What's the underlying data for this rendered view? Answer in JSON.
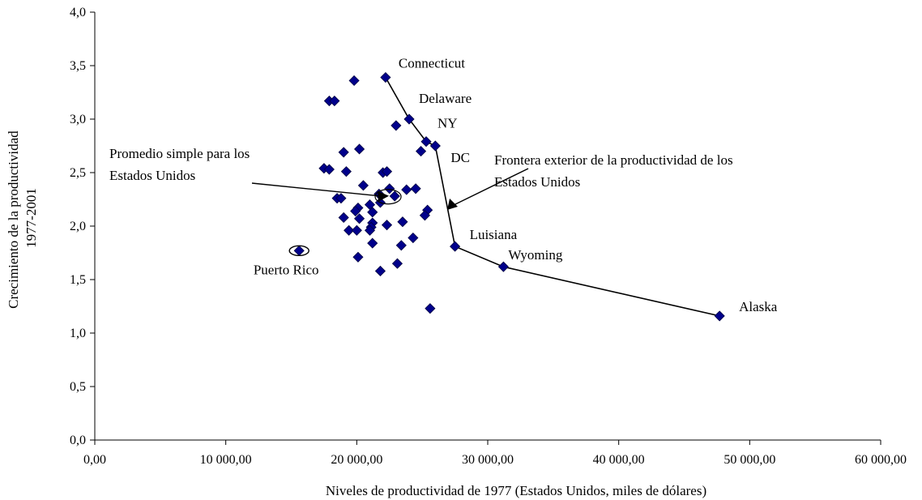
{
  "chart_data": {
    "type": "scatter",
    "title": "",
    "xlabel": "Niveles de productividad de 1977  (Estados Unidos, miles de dólares)",
    "ylabel_lines": [
      "Crecimiento de la productividad",
      "1977-2001"
    ],
    "xlim": [
      0,
      60000
    ],
    "ylim": [
      0,
      4.0
    ],
    "x_ticks": [
      0,
      10000,
      20000,
      30000,
      40000,
      50000,
      60000
    ],
    "x_tick_labels": [
      "0,00",
      "10 000,00",
      "20 000,00",
      "30 000,00",
      "40 000,00",
      "50 000,00",
      "60 000,00"
    ],
    "y_ticks": [
      0,
      0.5,
      1.0,
      1.5,
      2.0,
      2.5,
      3.0,
      3.5,
      4.0
    ],
    "y_tick_labels": [
      "0,0",
      "0,5",
      "1,0",
      "1,5",
      "2,0",
      "2,5",
      "3,0",
      "3,5",
      "4,0"
    ],
    "grid": false,
    "marker_color": "#00008B",
    "series": [
      {
        "name": "",
        "points": [
          {
            "x": 22200,
            "y": 3.39,
            "label": "Connecticut"
          },
          {
            "x": 24000,
            "y": 3.0,
            "label": "Delaware"
          },
          {
            "x": 25300,
            "y": 2.79,
            "label": "NY"
          },
          {
            "x": 26000,
            "y": 2.75,
            "label": "DC"
          },
          {
            "x": 27500,
            "y": 1.81,
            "label": "Luisiana"
          },
          {
            "x": 31200,
            "y": 1.62,
            "label": "Wyoming"
          },
          {
            "x": 47700,
            "y": 1.16,
            "label": "Alaska"
          },
          {
            "x": 15600,
            "y": 1.77,
            "label": "Puerto Rico"
          },
          {
            "x": 19800,
            "y": 3.36
          },
          {
            "x": 17900,
            "y": 3.17
          },
          {
            "x": 18300,
            "y": 3.17
          },
          {
            "x": 23000,
            "y": 2.94
          },
          {
            "x": 24900,
            "y": 2.7
          },
          {
            "x": 19000,
            "y": 2.69
          },
          {
            "x": 20200,
            "y": 2.72
          },
          {
            "x": 17500,
            "y": 2.54
          },
          {
            "x": 17900,
            "y": 2.53
          },
          {
            "x": 19200,
            "y": 2.51
          },
          {
            "x": 22000,
            "y": 2.5
          },
          {
            "x": 22300,
            "y": 2.51
          },
          {
            "x": 20500,
            "y": 2.38
          },
          {
            "x": 22500,
            "y": 2.35
          },
          {
            "x": 23800,
            "y": 2.34
          },
          {
            "x": 24500,
            "y": 2.35
          },
          {
            "x": 21700,
            "y": 2.3
          },
          {
            "x": 22900,
            "y": 2.28
          },
          {
            "x": 18500,
            "y": 2.26
          },
          {
            "x": 18800,
            "y": 2.26
          },
          {
            "x": 21000,
            "y": 2.2
          },
          {
            "x": 21800,
            "y": 2.22
          },
          {
            "x": 20100,
            "y": 2.17
          },
          {
            "x": 19900,
            "y": 2.14
          },
          {
            "x": 21200,
            "y": 2.13
          },
          {
            "x": 25400,
            "y": 2.15
          },
          {
            "x": 25200,
            "y": 2.1
          },
          {
            "x": 19000,
            "y": 2.08
          },
          {
            "x": 20200,
            "y": 2.07
          },
          {
            "x": 21200,
            "y": 2.03
          },
          {
            "x": 23500,
            "y": 2.04
          },
          {
            "x": 22300,
            "y": 2.01
          },
          {
            "x": 21100,
            "y": 1.99
          },
          {
            "x": 19400,
            "y": 1.96
          },
          {
            "x": 20000,
            "y": 1.96
          },
          {
            "x": 21000,
            "y": 1.96
          },
          {
            "x": 24300,
            "y": 1.89
          },
          {
            "x": 21200,
            "y": 1.84
          },
          {
            "x": 23400,
            "y": 1.82
          },
          {
            "x": 20100,
            "y": 1.71
          },
          {
            "x": 23100,
            "y": 1.65
          },
          {
            "x": 21800,
            "y": 1.58
          },
          {
            "x": 25600,
            "y": 1.23
          }
        ]
      }
    ],
    "frontier": [
      {
        "x": 22200,
        "y": 3.39
      },
      {
        "x": 24000,
        "y": 3.0
      },
      {
        "x": 25300,
        "y": 2.79
      },
      {
        "x": 26000,
        "y": 2.75
      },
      {
        "x": 27500,
        "y": 1.81
      },
      {
        "x": 31200,
        "y": 1.62
      },
      {
        "x": 47700,
        "y": 1.16
      }
    ],
    "average_point": {
      "x": 21900,
      "y": 2.29
    },
    "annotations": {
      "average_lines": [
        "Promedio simple para los",
        "Estados Unidos"
      ],
      "frontier_lines": [
        "Frontera exterior de la productividad de los",
        "Estados Unidos"
      ]
    }
  }
}
